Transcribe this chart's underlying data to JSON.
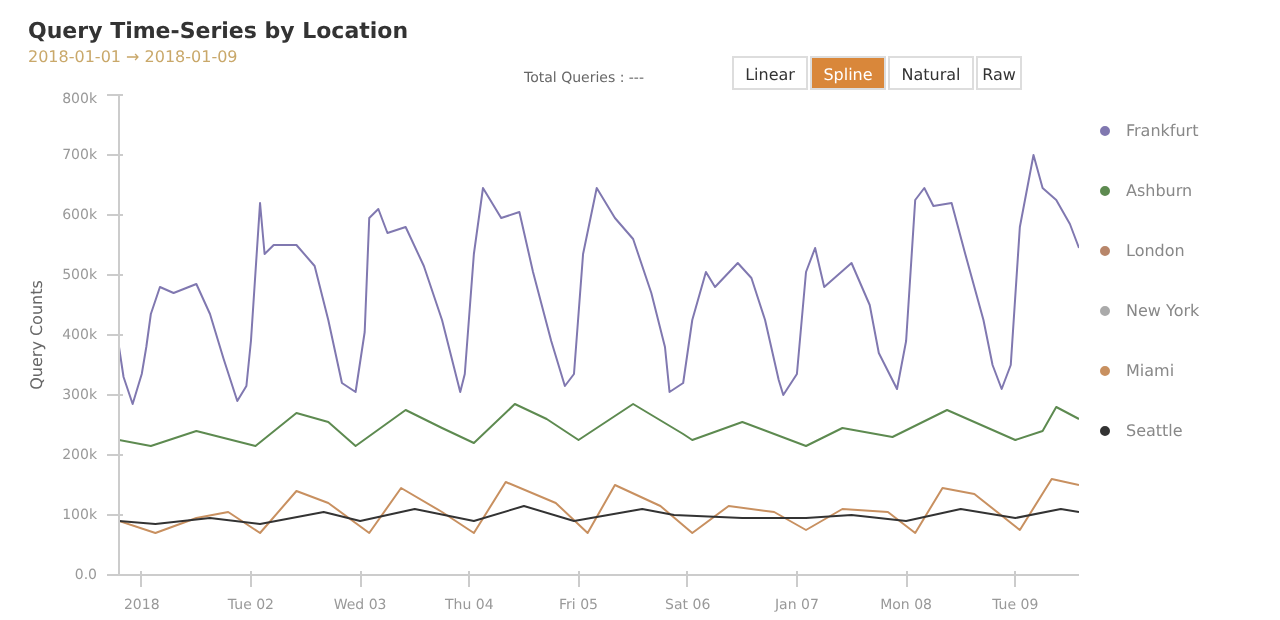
{
  "chart_data": {
    "type": "line",
    "title": "Query Time-Series by Location",
    "subtitle": "2018-01-01 → 2018-01-09",
    "ylabel": "Query Counts",
    "annotations": [
      "Total Queries : ---",
      "Linear",
      "Spline",
      "Natural",
      "Raw"
    ],
    "xlim": [
      "2017-12-31T19:00",
      "2018-01-09T14:00"
    ],
    "xticks": [
      {
        "value": "2018-01-01",
        "label": "2018"
      },
      {
        "value": "2018-01-02",
        "label": "Tue 02"
      },
      {
        "value": "2018-01-03",
        "label": "Wed 03"
      },
      {
        "value": "2018-01-04",
        "label": "Thu 04"
      },
      {
        "value": "2018-01-05",
        "label": "Fri 05"
      },
      {
        "value": "2018-01-06",
        "label": "Sat 06"
      },
      {
        "value": "2018-01-07",
        "label": "Jan 07"
      },
      {
        "value": "2018-01-08",
        "label": "Mon 08"
      },
      {
        "value": "2018-01-09",
        "label": "Tue 09"
      }
    ],
    "ylim": [
      0,
      800000
    ],
    "yticks": [
      {
        "value": 0,
        "label": "0.0"
      },
      {
        "value": 100000,
        "label": "100k"
      },
      {
        "value": 200000,
        "label": "200k"
      },
      {
        "value": 300000,
        "label": "300k"
      },
      {
        "value": 400000,
        "label": "400k"
      },
      {
        "value": 500000,
        "label": "500k"
      },
      {
        "value": 600000,
        "label": "600k"
      },
      {
        "value": 700000,
        "label": "700k"
      },
      {
        "value": 800000,
        "label": "800k"
      }
    ],
    "grid": false,
    "legend": "right",
    "marker": "none",
    "line_style": "solid",
    "series": [
      {
        "name": "Frankfurt",
        "color": "#8078b0",
        "x": [
          "2017-12-31T19:00",
          "2017-12-31T20:00",
          "2017-12-31T22:00",
          "2018-01-01T00:00",
          "2018-01-01T01:00",
          "2018-01-01T02:00",
          "2018-01-01T04:00",
          "2018-01-01T07:00",
          "2018-01-01T12:00",
          "2018-01-01T15:00",
          "2018-01-01T18:00",
          "2018-01-01T21:00",
          "2018-01-01T23:00",
          "2018-01-02T00:00",
          "2018-01-02T02:00",
          "2018-01-02T03:00",
          "2018-01-02T05:00",
          "2018-01-02T10:00",
          "2018-01-02T14:00",
          "2018-01-02T17:00",
          "2018-01-02T20:00",
          "2018-01-02T23:00",
          "2018-01-03T01:00",
          "2018-01-03T02:00",
          "2018-01-03T04:00",
          "2018-01-03T06:00",
          "2018-01-03T10:00",
          "2018-01-03T14:00",
          "2018-01-03T18:00",
          "2018-01-03T22:00",
          "2018-01-03T23:00",
          "2018-01-04T01:00",
          "2018-01-04T03:00",
          "2018-01-04T07:00",
          "2018-01-04T11:00",
          "2018-01-04T14:00",
          "2018-01-04T18:00",
          "2018-01-04T21:00",
          "2018-01-04T23:00",
          "2018-01-05T01:00",
          "2018-01-05T04:00",
          "2018-01-05T08:00",
          "2018-01-05T12:00",
          "2018-01-05T16:00",
          "2018-01-05T19:00",
          "2018-01-05T20:00",
          "2018-01-05T23:00",
          "2018-01-06T01:00",
          "2018-01-06T04:00",
          "2018-01-06T06:00",
          "2018-01-06T11:00",
          "2018-01-06T14:00",
          "2018-01-06T17:00",
          "2018-01-06T20:00",
          "2018-01-06T21:00",
          "2018-01-07T00:00",
          "2018-01-07T02:00",
          "2018-01-07T04:00",
          "2018-01-07T06:00",
          "2018-01-07T12:00",
          "2018-01-07T16:00",
          "2018-01-07T18:00",
          "2018-01-07T22:00",
          "2018-01-08T00:00",
          "2018-01-08T02:00",
          "2018-01-08T04:00",
          "2018-01-08T06:00",
          "2018-01-08T10:00",
          "2018-01-08T13:00",
          "2018-01-08T17:00",
          "2018-01-08T19:00",
          "2018-01-08T21:00",
          "2018-01-08T23:00",
          "2018-01-09T01:00",
          "2018-01-09T04:00",
          "2018-01-09T06:00",
          "2018-01-09T09:00",
          "2018-01-09T12:00",
          "2018-01-09T14:00"
        ],
        "values": [
          380000,
          330000,
          285000,
          335000,
          380000,
          435000,
          480000,
          470000,
          485000,
          435000,
          360000,
          290000,
          315000,
          390000,
          620000,
          535000,
          550000,
          550000,
          515000,
          425000,
          320000,
          305000,
          405000,
          595000,
          610000,
          570000,
          580000,
          515000,
          425000,
          305000,
          335000,
          535000,
          645000,
          595000,
          605000,
          505000,
          390000,
          315000,
          335000,
          535000,
          645000,
          595000,
          560000,
          470000,
          380000,
          305000,
          320000,
          425000,
          505000,
          480000,
          520000,
          495000,
          425000,
          325000,
          300000,
          335000,
          505000,
          545000,
          480000,
          520000,
          450000,
          370000,
          310000,
          390000,
          625000,
          645000,
          615000,
          620000,
          535000,
          425000,
          350000,
          310000,
          350000,
          580000,
          700000,
          645000,
          625000,
          585000,
          545000
        ]
      },
      {
        "name": "Ashburn",
        "color": "#5d8a50",
        "x": [
          "2017-12-31T19:00",
          "2018-01-01T02:00",
          "2018-01-01T12:00",
          "2018-01-02T01:00",
          "2018-01-02T10:00",
          "2018-01-02T17:00",
          "2018-01-02T23:00",
          "2018-01-03T10:00",
          "2018-01-03T18:00",
          "2018-01-04T01:00",
          "2018-01-04T10:00",
          "2018-01-04T17:00",
          "2018-01-05T00:00",
          "2018-01-05T12:00",
          "2018-01-05T23:00",
          "2018-01-06T01:00",
          "2018-01-06T12:00",
          "2018-01-07T02:00",
          "2018-01-07T10:00",
          "2018-01-07T21:00",
          "2018-01-08T09:00",
          "2018-01-09T00:00",
          "2018-01-09T06:00",
          "2018-01-09T09:00",
          "2018-01-09T14:00"
        ],
        "values": [
          225000,
          215000,
          240000,
          215000,
          270000,
          255000,
          215000,
          275000,
          245000,
          220000,
          285000,
          260000,
          225000,
          285000,
          235000,
          225000,
          255000,
          215000,
          245000,
          230000,
          275000,
          225000,
          240000,
          280000,
          260000
        ]
      },
      {
        "name": "London",
        "color": "#b8866a"
      },
      {
        "name": "New York",
        "color": "#aaaaaa"
      },
      {
        "name": "Miami",
        "color": "#c89060",
        "x": [
          "2017-12-31T19:00",
          "2018-01-01T03:00",
          "2018-01-01T12:00",
          "2018-01-01T19:00",
          "2018-01-02T02:00",
          "2018-01-02T10:00",
          "2018-01-02T17:00",
          "2018-01-03T02:00",
          "2018-01-03T09:00",
          "2018-01-03T18:00",
          "2018-01-04T01:00",
          "2018-01-04T08:00",
          "2018-01-04T19:00",
          "2018-01-05T02:00",
          "2018-01-05T08:00",
          "2018-01-05T18:00",
          "2018-01-06T01:00",
          "2018-01-06T09:00",
          "2018-01-06T19:00",
          "2018-01-07T02:00",
          "2018-01-07T10:00",
          "2018-01-07T20:00",
          "2018-01-08T02:00",
          "2018-01-08T08:00",
          "2018-01-08T15:00",
          "2018-01-09T01:00",
          "2018-01-09T08:00",
          "2018-01-09T14:00"
        ],
        "values": [
          90000,
          70000,
          95000,
          105000,
          70000,
          140000,
          120000,
          70000,
          145000,
          105000,
          70000,
          155000,
          120000,
          70000,
          150000,
          115000,
          70000,
          115000,
          105000,
          75000,
          110000,
          105000,
          70000,
          145000,
          135000,
          75000,
          160000,
          150000
        ]
      },
      {
        "name": "Seattle",
        "color": "#333333",
        "x": [
          "2017-12-31T19:00",
          "2018-01-01T03:00",
          "2018-01-01T15:00",
          "2018-01-02T02:00",
          "2018-01-02T16:00",
          "2018-01-03T00:00",
          "2018-01-03T12:00",
          "2018-01-04T01:00",
          "2018-01-04T12:00",
          "2018-01-04T23:00",
          "2018-01-05T14:00",
          "2018-01-05T21:00",
          "2018-01-06T12:00",
          "2018-01-07T02:00",
          "2018-01-07T12:00",
          "2018-01-08T00:00",
          "2018-01-08T12:00",
          "2018-01-09T00:00",
          "2018-01-09T10:00",
          "2018-01-09T14:00"
        ],
        "values": [
          90000,
          85000,
          95000,
          85000,
          105000,
          90000,
          110000,
          90000,
          115000,
          90000,
          110000,
          100000,
          95000,
          95000,
          100000,
          90000,
          110000,
          95000,
          110000,
          105000
        ]
      }
    ]
  }
}
